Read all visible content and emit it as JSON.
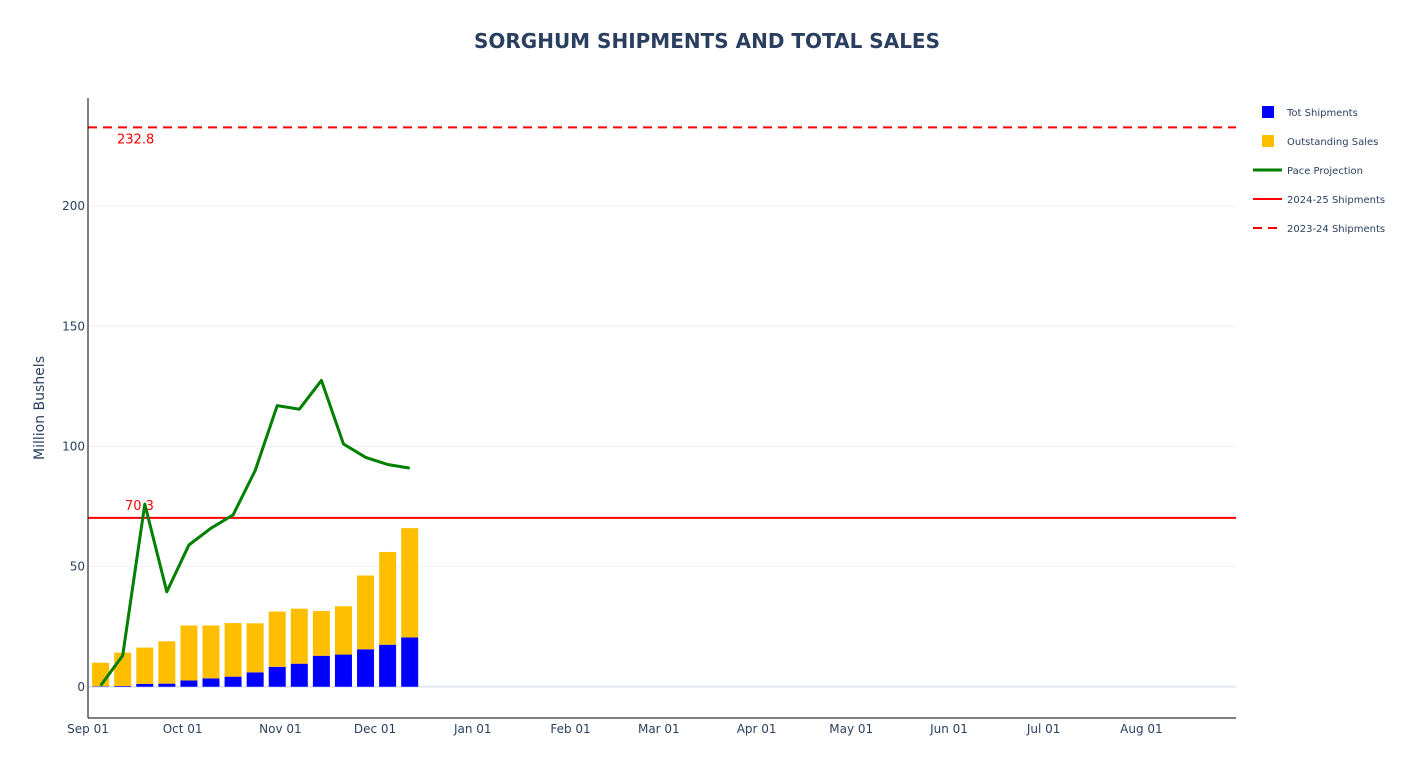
{
  "chart_data": {
    "type": "bar",
    "title": "SORGHUM SHIPMENTS AND TOTAL SALES",
    "ylabel": "Million Bushels",
    "xlabel": "",
    "ylim": [
      -13,
      245
    ],
    "xlim": [
      "2024-09-01",
      "2025-08-31"
    ],
    "y_ticks": [
      0,
      50,
      100,
      150,
      200
    ],
    "x_ticks": [
      {
        "date": "2024-09-01",
        "label": "Sep 01"
      },
      {
        "date": "2024-10-01",
        "label": "Oct 01"
      },
      {
        "date": "2024-11-01",
        "label": "Nov 01"
      },
      {
        "date": "2024-12-01",
        "label": "Dec 01"
      },
      {
        "date": "2025-01-01",
        "label": "Jan 01"
      },
      {
        "date": "2025-02-01",
        "label": "Feb 01"
      },
      {
        "date": "2025-03-01",
        "label": "Mar 01"
      },
      {
        "date": "2025-04-01",
        "label": "Apr 01"
      },
      {
        "date": "2025-05-01",
        "label": "May 01"
      },
      {
        "date": "2025-06-01",
        "label": "Jun 01"
      },
      {
        "date": "2025-07-01",
        "label": "Jul 01"
      },
      {
        "date": "2025-08-01",
        "label": "Aug 01"
      }
    ],
    "dates": [
      "2024-09-05",
      "2024-09-12",
      "2024-09-19",
      "2024-09-26",
      "2024-10-03",
      "2024-10-10",
      "2024-10-17",
      "2024-10-24",
      "2024-10-31",
      "2024-11-07",
      "2024-11-14",
      "2024-11-21",
      "2024-11-28",
      "2024-12-05",
      "2024-12-12"
    ],
    "series": [
      {
        "name": "Tot Shipments",
        "kind": "bar",
        "color": "#0000ff",
        "values": [
          0.2,
          0.3,
          1.2,
          1.3,
          2.6,
          3.5,
          4.2,
          6.0,
          8.3,
          9.6,
          12.9,
          13.4,
          15.6,
          17.5,
          20.5
        ]
      },
      {
        "name": "Outstanding Sales",
        "kind": "bar",
        "color": "#ffbf00",
        "values": [
          9.8,
          13.9,
          15.1,
          17.6,
          22.9,
          22.0,
          22.3,
          20.4,
          23.0,
          22.9,
          18.6,
          20.1,
          30.7,
          38.6,
          45.5
        ]
      },
      {
        "name": "Pace Projection",
        "kind": "line",
        "color": "#008000",
        "values": [
          0.5,
          13.0,
          76.0,
          39.5,
          59.0,
          66.0,
          71.5,
          90.0,
          117.0,
          115.5,
          127.5,
          101.0,
          95.5,
          92.5,
          91.0
        ]
      },
      {
        "name": "2024-25 Shipments",
        "kind": "hline",
        "color": "#ff0000",
        "value": 70.3
      },
      {
        "name": "2023-24 Shipments",
        "kind": "hline-dashed",
        "color": "#ff0000",
        "value": 232.8
      }
    ],
    "annotations": [
      {
        "text": "232.8",
        "color": "#ff0000"
      },
      {
        "text": "70.3",
        "color": "#ff0000"
      }
    ],
    "legend_position": "top-right"
  }
}
